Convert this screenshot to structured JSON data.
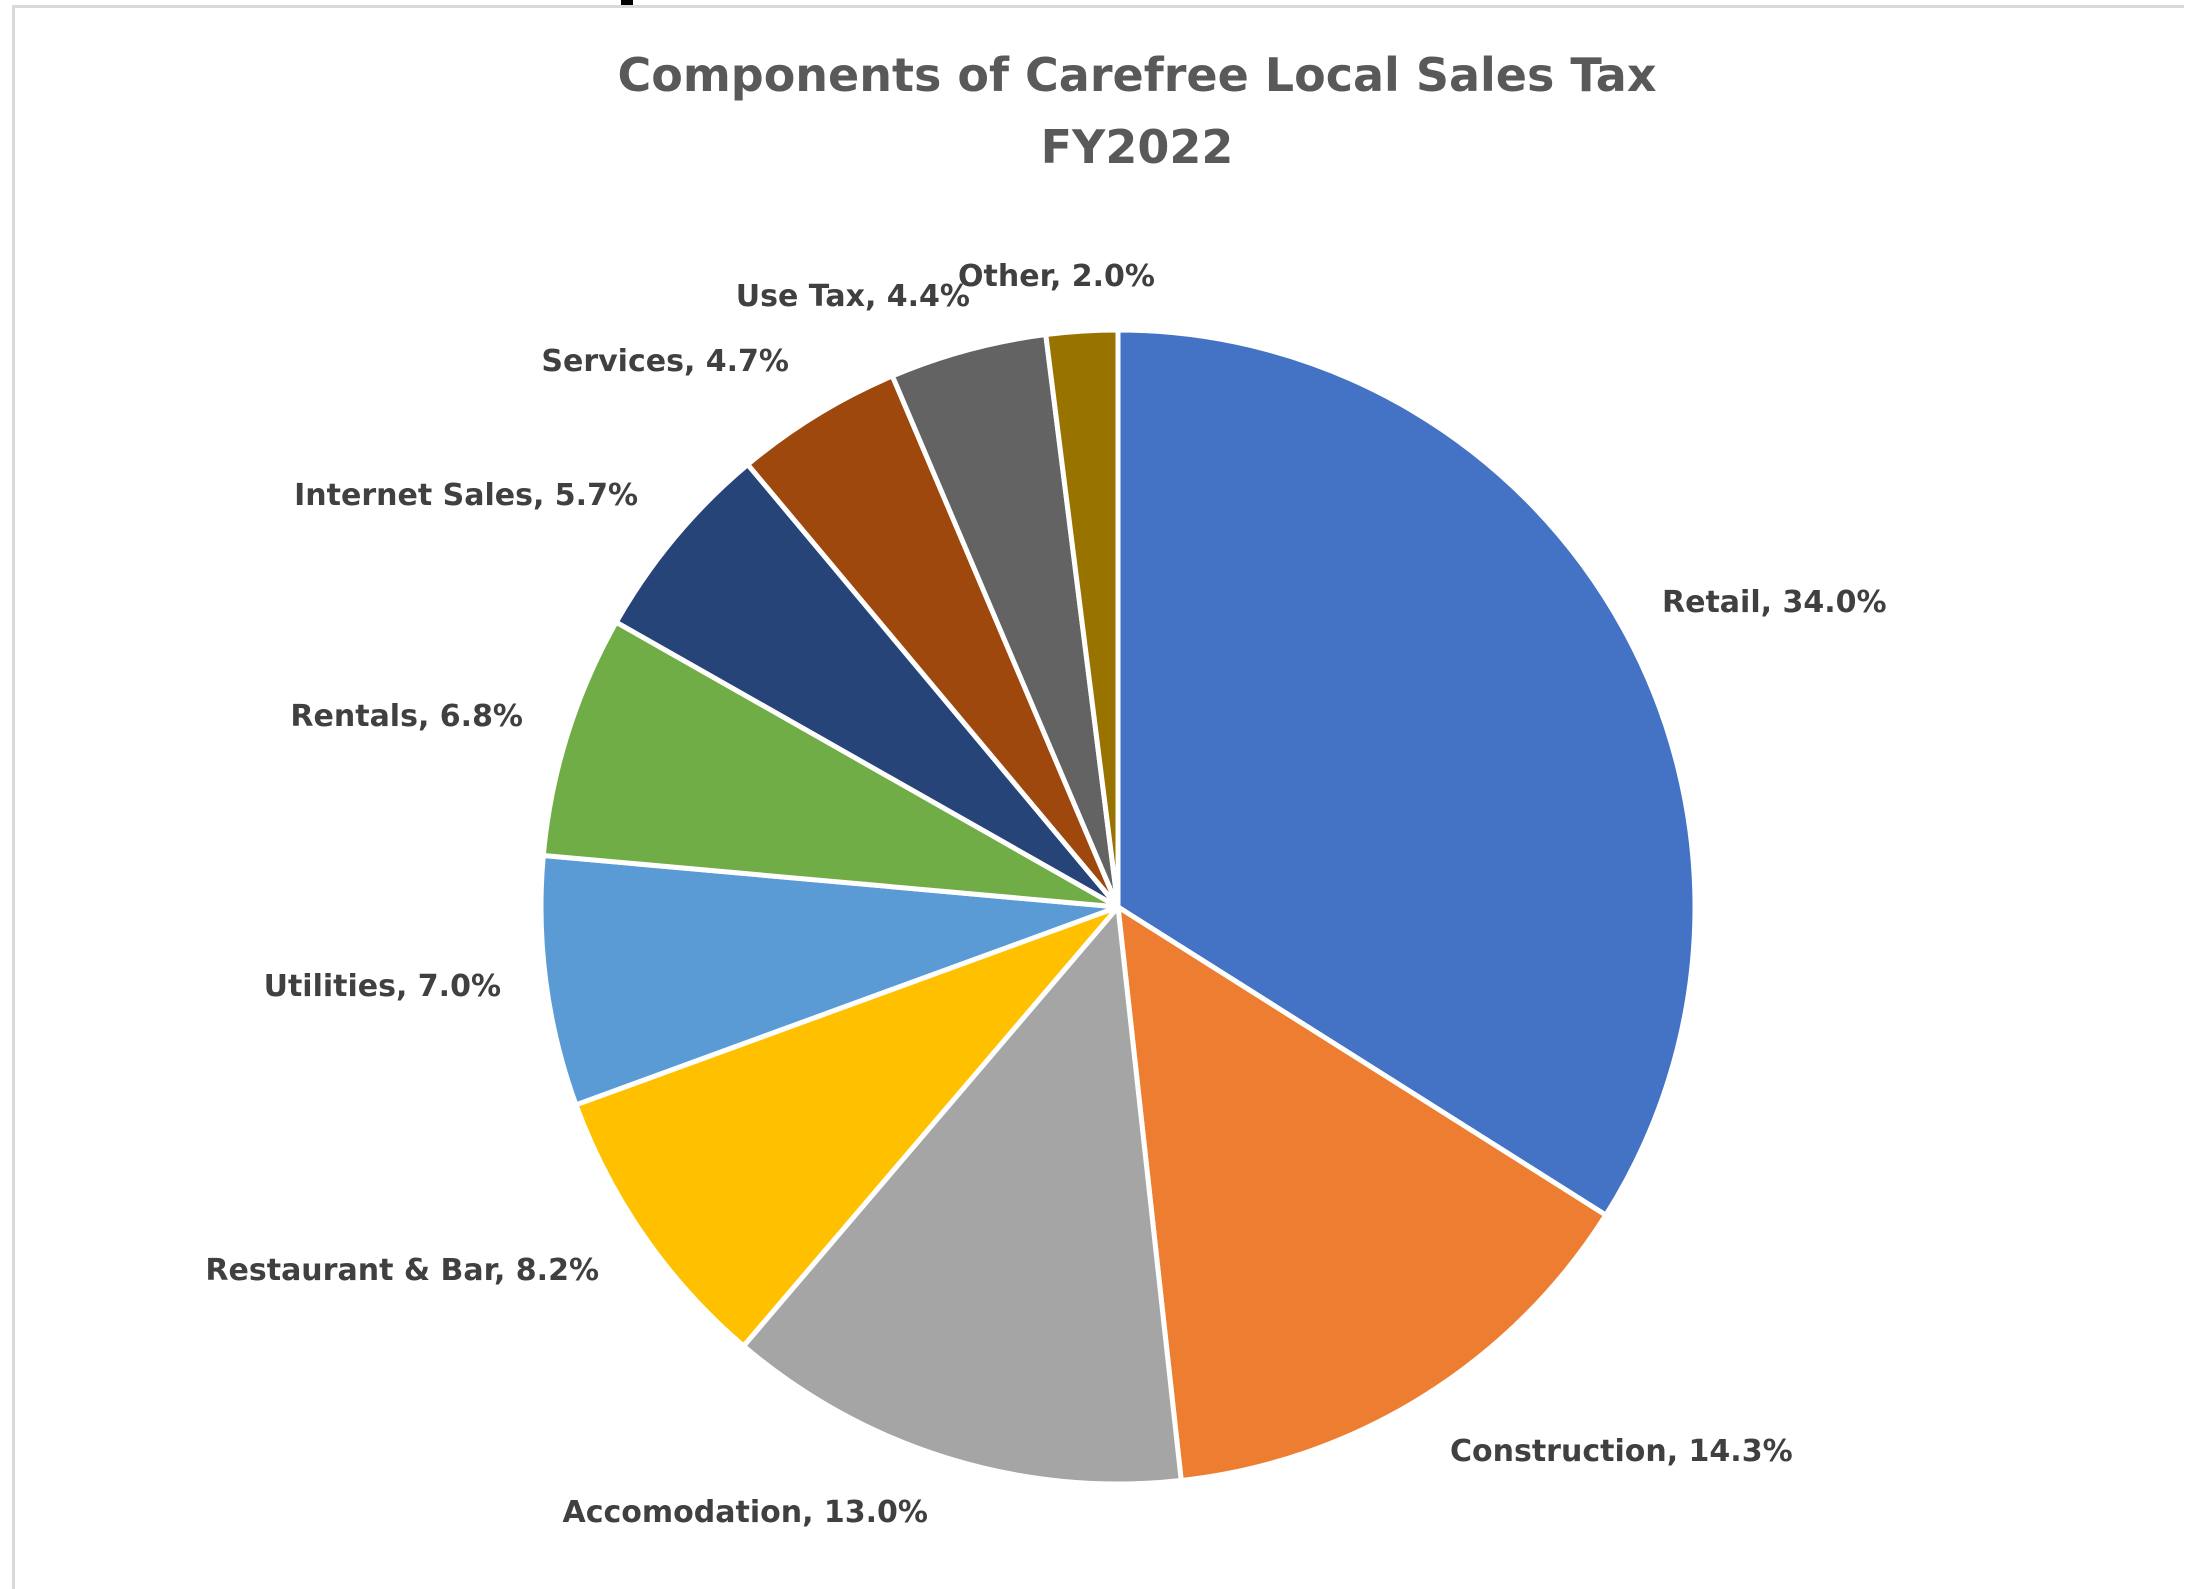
{
  "chart_data": {
    "type": "pie",
    "title": "Components of Carefree Local Sales Tax",
    "subtitle": "FY2022",
    "slices": [
      {
        "label": "Retail, 34.0%",
        "name": "Retail",
        "value": 34.0,
        "color": "#4472C4"
      },
      {
        "label": "Construction, 14.3%",
        "name": "Construction",
        "value": 14.3,
        "color": "#ED7D31"
      },
      {
        "label": "Accomodation, 13.0%",
        "name": "Accomodation",
        "value": 13.0,
        "color": "#A5A5A5"
      },
      {
        "label": "Restaurant & Bar, 8.2%",
        "name": "Restaurant & Bar",
        "value": 8.2,
        "color": "#FFC000"
      },
      {
        "label": "Utilities, 7.0%",
        "name": "Utilities",
        "value": 7.0,
        "color": "#5B9BD5"
      },
      {
        "label": "Rentals, 6.8%",
        "name": "Rentals",
        "value": 6.8,
        "color": "#70AD47"
      },
      {
        "label": "Internet Sales, 5.7%",
        "name": "Internet Sales",
        "value": 5.7,
        "color": "#264478"
      },
      {
        "label": "Services, 4.7%",
        "name": "Services",
        "value": 4.7,
        "color": "#9E480E"
      },
      {
        "label": "Use Tax, 4.4%",
        "name": "Use Tax",
        "value": 4.4,
        "color": "#636363"
      },
      {
        "label": "Other, 2.0%",
        "name": "Other",
        "value": 2.0,
        "color": "#997300"
      }
    ]
  }
}
